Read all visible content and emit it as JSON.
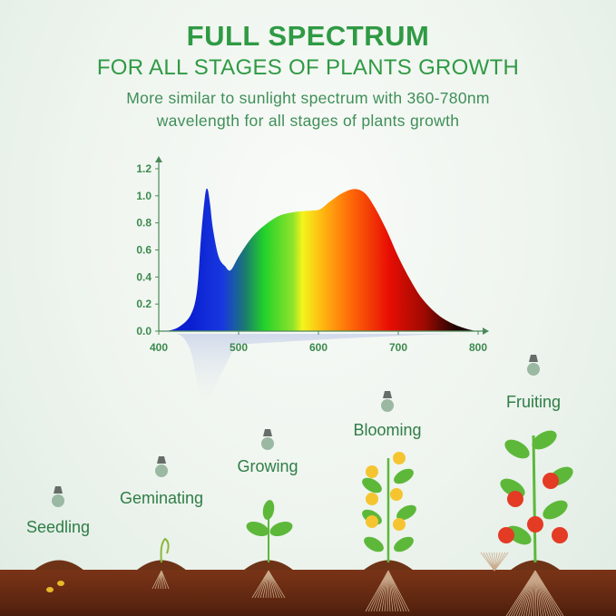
{
  "header": {
    "title": "FULL SPECTRUM",
    "subtitle": "FOR ALL STAGES OF PLANTS GROWTH",
    "description_line1": "More similar to sunlight spectrum with 360-780nm",
    "description_line2": "wavelength for all stages of plants growth"
  },
  "chart_data": {
    "type": "area",
    "title": "",
    "xlabel": "",
    "ylabel": "",
    "xlim": [
      400,
      800
    ],
    "ylim": [
      0,
      1.2
    ],
    "x_ticks": [
      400,
      500,
      600,
      700,
      800
    ],
    "y_ticks": [
      "0.0",
      "0.2",
      "0.4",
      "0.6",
      "0.8",
      "1.0",
      "1.2"
    ],
    "grid": false,
    "fill": "visible-spectrum gradient",
    "x": [
      410,
      425,
      440,
      448,
      453,
      458,
      461,
      464,
      468,
      475,
      483,
      490,
      500,
      515,
      530,
      550,
      570,
      590,
      602,
      615,
      630,
      645,
      658,
      670,
      685,
      700,
      715,
      730,
      750,
      770,
      790,
      800
    ],
    "y": [
      0,
      0.03,
      0.12,
      0.3,
      0.7,
      1.0,
      1.05,
      0.95,
      0.75,
      0.55,
      0.48,
      0.45,
      0.55,
      0.68,
      0.77,
      0.85,
      0.88,
      0.89,
      0.9,
      0.96,
      1.02,
      1.05,
      1.02,
      0.92,
      0.75,
      0.55,
      0.38,
      0.24,
      0.12,
      0.05,
      0.01,
      0
    ]
  },
  "colors": {
    "accent": "#2f9a44",
    "axis": "#4c8a5b",
    "soil": "#6b2c12"
  },
  "stages": [
    {
      "label": "Seedling",
      "icon": "bulb-icon"
    },
    {
      "label": "Geminating",
      "icon": "bulb-icon"
    },
    {
      "label": "Growing",
      "icon": "bulb-icon"
    },
    {
      "label": "Blooming",
      "icon": "bulb-icon"
    },
    {
      "label": "Fruiting",
      "icon": "bulb-icon"
    }
  ]
}
